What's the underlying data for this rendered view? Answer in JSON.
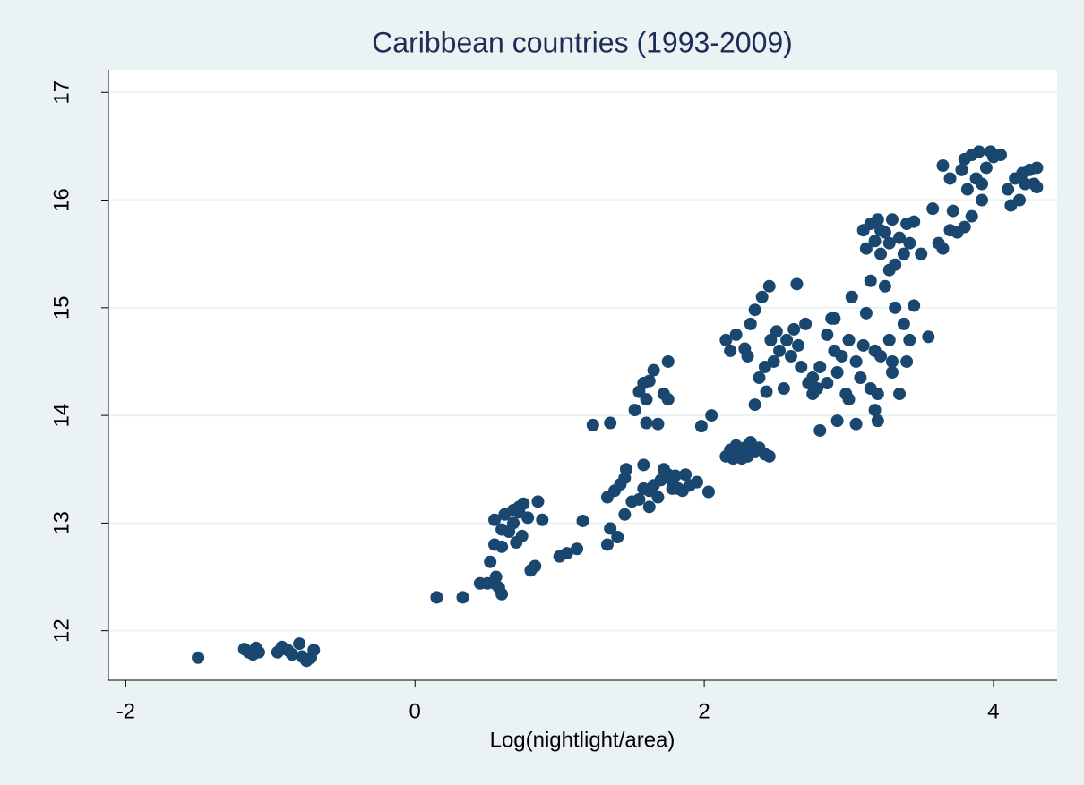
{
  "chart_data": {
    "type": "scatter",
    "title": "Caribbean countries (1993-2009)",
    "xlabel": "Log(nightlight/area)",
    "color": "#1a476f",
    "grid": true,
    "xlim": [
      -2.12,
      4.44
    ],
    "ylim": [
      11.54,
      17.21
    ],
    "xticks": [
      -2,
      0,
      2,
      4
    ],
    "yticks": [
      12,
      13,
      14,
      15,
      16,
      17
    ],
    "x": [
      -1.5,
      -1.18,
      -1.15,
      -1.1,
      -1.08,
      -0.95,
      -0.92,
      -0.88,
      -0.85,
      -0.8,
      -0.78,
      -0.75,
      -0.7,
      -0.72,
      -1.12,
      0.15,
      0.33,
      0.45,
      0.5,
      0.52,
      0.55,
      0.56,
      0.58,
      0.6,
      0.55,
      0.6,
      0.55,
      0.6,
      0.62,
      0.65,
      0.68,
      0.7,
      0.72,
      0.74,
      0.75,
      0.78,
      0.72,
      0.8,
      0.83,
      0.85,
      0.88,
      0.68,
      1.0,
      1.05,
      1.12,
      1.16,
      1.23,
      1.35,
      1.33,
      1.35,
      1.4,
      1.33,
      1.38,
      1.42,
      1.45,
      1.46,
      1.45,
      1.5,
      1.55,
      1.58,
      1.58,
      1.62,
      1.62,
      1.65,
      1.68,
      1.7,
      1.72,
      1.75,
      1.78,
      1.8,
      1.82,
      1.85,
      1.87,
      1.9,
      1.95,
      2.03,
      1.78,
      1.52,
      1.55,
      1.58,
      1.6,
      1.62,
      1.65,
      1.6,
      1.68,
      1.72,
      1.75,
      1.75,
      1.98,
      2.05,
      2.15,
      2.18,
      2.2,
      2.22,
      2.25,
      2.28,
      2.3,
      2.32,
      2.35,
      2.38,
      2.42,
      2.45,
      2.2,
      2.26,
      2.15,
      2.18,
      2.22,
      2.28,
      2.3,
      2.32,
      2.35,
      2.38,
      2.4,
      2.42,
      2.43,
      2.45,
      2.46,
      2.48,
      2.5,
      2.52,
      2.55,
      2.57,
      2.6,
      2.62,
      2.64,
      2.65,
      2.67,
      2.7,
      2.35,
      2.72,
      2.75,
      2.78,
      2.8,
      2.8,
      2.85,
      2.88,
      2.9,
      2.92,
      2.95,
      2.98,
      3.0,
      3.02,
      3.05,
      3.08,
      3.1,
      3.12,
      3.15,
      3.18,
      3.2,
      3.22,
      3.25,
      3.28,
      3.3,
      3.32,
      3.35,
      3.38,
      3.4,
      3.42,
      3.45,
      3.55,
      2.92,
      3.05,
      3.18,
      3.2,
      2.9,
      3.0,
      2.75,
      3.15,
      3.3,
      2.85,
      3.1,
      3.12,
      3.15,
      3.18,
      3.2,
      3.22,
      3.25,
      3.28,
      3.3,
      3.32,
      3.35,
      3.38,
      3.4,
      3.42,
      3.45,
      3.5,
      3.28,
      3.22,
      3.62,
      3.65,
      3.65,
      3.7,
      3.72,
      3.75,
      3.78,
      3.8,
      3.82,
      3.85,
      3.85,
      3.88,
      3.9,
      3.92,
      3.95,
      3.98,
      4.0,
      4.05,
      3.8,
      3.92,
      4.1,
      4.12,
      4.15,
      4.18,
      4.2,
      4.22,
      4.25,
      4.28,
      4.3,
      4.3,
      3.58,
      3.7
    ],
    "values": [
      11.75,
      11.83,
      11.8,
      11.84,
      11.8,
      11.8,
      11.85,
      11.82,
      11.78,
      11.88,
      11.76,
      11.72,
      11.82,
      11.75,
      11.78,
      12.31,
      12.31,
      12.44,
      12.44,
      12.64,
      12.44,
      12.5,
      12.4,
      12.34,
      12.8,
      12.78,
      13.03,
      12.94,
      13.08,
      12.92,
      13.0,
      12.82,
      13.15,
      12.88,
      13.18,
      13.05,
      13.1,
      12.56,
      12.6,
      13.2,
      13.03,
      13.12,
      12.69,
      12.72,
      12.76,
      13.02,
      13.91,
      13.93,
      12.8,
      12.95,
      12.87,
      13.24,
      13.3,
      13.36,
      13.42,
      13.5,
      13.08,
      13.2,
      13.22,
      13.32,
      13.54,
      13.15,
      13.3,
      13.35,
      13.24,
      13.4,
      13.5,
      13.45,
      13.38,
      13.44,
      13.32,
      13.3,
      13.45,
      13.35,
      13.38,
      13.29,
      13.32,
      14.05,
      14.22,
      14.3,
      14.15,
      14.32,
      14.42,
      13.93,
      13.92,
      14.2,
      14.15,
      14.5,
      13.9,
      14.0,
      13.62,
      13.68,
      13.6,
      13.72,
      13.65,
      13.7,
      13.62,
      13.75,
      13.66,
      13.7,
      13.64,
      13.62,
      13.65,
      13.6,
      14.7,
      14.6,
      14.75,
      14.62,
      14.55,
      14.85,
      14.98,
      14.35,
      15.1,
      14.45,
      14.22,
      15.2,
      14.7,
      14.5,
      14.78,
      14.6,
      14.25,
      14.7,
      14.55,
      14.8,
      15.22,
      14.65,
      14.45,
      14.85,
      14.1,
      14.3,
      14.35,
      14.25,
      14.45,
      13.86,
      14.75,
      14.9,
      14.6,
      14.4,
      14.55,
      14.2,
      14.7,
      15.1,
      14.5,
      14.35,
      14.65,
      14.95,
      15.25,
      14.6,
      14.2,
      14.55,
      15.2,
      14.7,
      14.5,
      15.0,
      14.2,
      14.85,
      14.5,
      14.7,
      15.02,
      14.73,
      13.95,
      13.92,
      14.05,
      13.95,
      14.9,
      14.15,
      14.2,
      14.25,
      14.4,
      14.3,
      15.72,
      15.55,
      15.78,
      15.62,
      15.82,
      15.5,
      15.7,
      15.6,
      15.82,
      15.4,
      15.65,
      15.5,
      15.78,
      15.6,
      15.8,
      15.5,
      15.35,
      15.72,
      15.6,
      15.55,
      16.32,
      16.2,
      15.9,
      15.7,
      16.28,
      16.38,
      16.1,
      15.85,
      16.42,
      16.2,
      16.45,
      16.0,
      16.3,
      16.45,
      16.4,
      16.42,
      15.75,
      16.15,
      16.1,
      15.95,
      16.2,
      16.0,
      16.25,
      16.15,
      16.28,
      16.15,
      16.3,
      16.12,
      15.92,
      15.72
    ]
  }
}
